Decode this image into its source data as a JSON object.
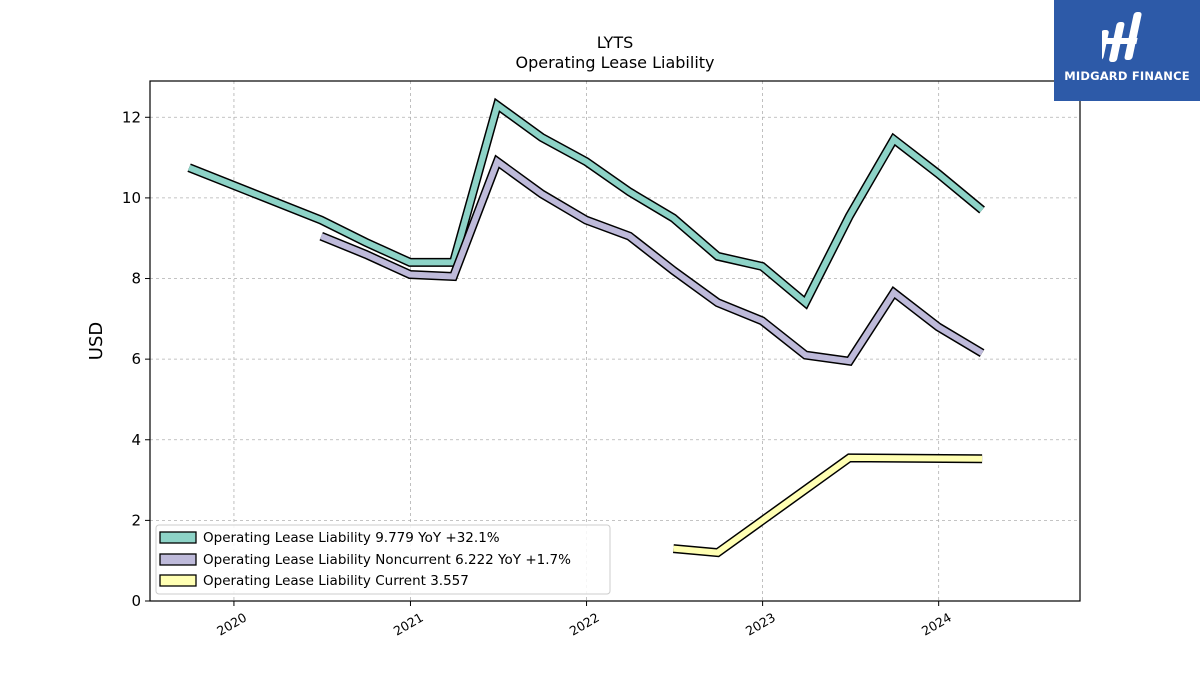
{
  "brand": {
    "name": "MIDGARD FINANCE",
    "bg_color": "#2d5aa8"
  },
  "chart_data": {
    "type": "line",
    "title": "LYTS",
    "subtitle": "Operating Lease Liability",
    "ylabel": "USD",
    "xlabel": "",
    "ylim": [
      0,
      12.9
    ],
    "xlim": [
      "2019-07-11",
      "2024-10-20"
    ],
    "yticks": [
      0,
      2,
      4,
      6,
      8,
      10,
      12
    ],
    "xticks": [
      "2020",
      "2021",
      "2022",
      "2023",
      "2024"
    ],
    "grid": true,
    "legend_position": "lower-left",
    "series": [
      {
        "name": "Operating Lease Liability",
        "legend": "Operating Lease Liability  9.779 YoY +32.1%",
        "color": "#8dd3c7",
        "points": [
          [
            "2019-09-30",
            10.75
          ],
          [
            "2020-06-30",
            9.45
          ],
          [
            "2020-09-30",
            8.9
          ],
          [
            "2020-12-31",
            8.4
          ],
          [
            "2021-03-31",
            8.4
          ],
          [
            "2021-06-30",
            12.3
          ],
          [
            "2021-09-30",
            11.5
          ],
          [
            "2021-12-31",
            10.9
          ],
          [
            "2022-03-31",
            10.15
          ],
          [
            "2022-06-30",
            9.5
          ],
          [
            "2022-09-30",
            8.55
          ],
          [
            "2022-12-31",
            8.3
          ],
          [
            "2023-03-31",
            7.4
          ],
          [
            "2023-06-30",
            9.55
          ],
          [
            "2023-09-30",
            11.45
          ],
          [
            "2023-12-31",
            10.6
          ],
          [
            "2024-03-31",
            9.7
          ]
        ]
      },
      {
        "name": "Operating Lease Liability Noncurrent",
        "legend": "Operating Lease Liability Noncurrent  6.222 YoY +1.7%",
        "color": "#bebada",
        "points": [
          [
            "2020-06-30",
            9.05
          ],
          [
            "2020-09-30",
            8.6
          ],
          [
            "2020-12-31",
            8.1
          ],
          [
            "2021-03-31",
            8.05
          ],
          [
            "2021-06-30",
            10.9
          ],
          [
            "2021-09-30",
            10.1
          ],
          [
            "2021-12-31",
            9.45
          ],
          [
            "2022-03-31",
            9.05
          ],
          [
            "2022-06-30",
            8.2
          ],
          [
            "2022-09-30",
            7.4
          ],
          [
            "2022-12-31",
            6.95
          ],
          [
            "2023-03-31",
            6.1
          ],
          [
            "2023-06-30",
            5.95
          ],
          [
            "2023-09-30",
            7.65
          ],
          [
            "2023-12-31",
            6.8
          ],
          [
            "2024-03-31",
            6.15
          ]
        ]
      },
      {
        "name": "Operating Lease Liability Current",
        "legend": "Operating Lease Liability Current  3.557",
        "color": "#ffffb3",
        "points": [
          [
            "2022-06-30",
            1.3
          ],
          [
            "2022-09-30",
            1.2
          ],
          [
            "2023-06-30",
            3.55
          ],
          [
            "2024-03-31",
            3.53
          ]
        ]
      }
    ]
  }
}
